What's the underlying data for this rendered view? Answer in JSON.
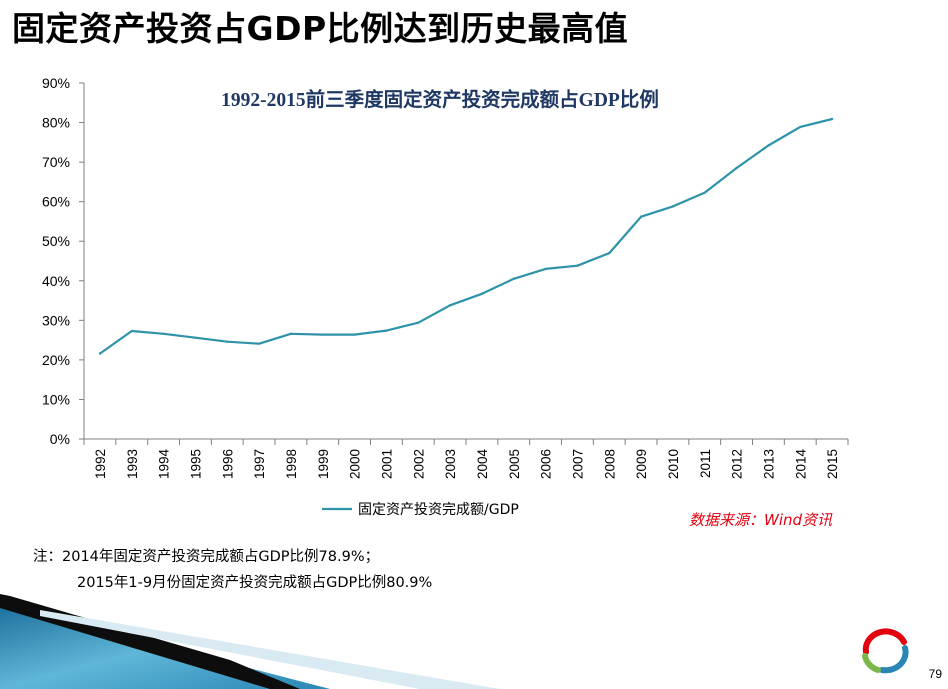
{
  "slide": {
    "title": "固定资产投资占GDP比例达到历史最高值",
    "source": "数据来源：Wind资讯",
    "notes": [
      "注：2014年固定资产投资完成额占GDP比例78.9%；",
      "2015年1-9月份固定资产投资完成额占GDP比例80.9%"
    ],
    "page_number": "79"
  },
  "colors": {
    "series_line": "#2e93a8",
    "axis": "#7f7f7f",
    "chart_title": "#1f3864",
    "source_text": "#e3000f"
  },
  "chart_data": {
    "type": "line",
    "title": "1992-2015前三季度固定资产投资完成额占GDP比例",
    "xlabel": "",
    "ylabel": "",
    "x": [
      "1992",
      "1993",
      "1994",
      "1995",
      "1996",
      "1997",
      "1998",
      "1999",
      "2000",
      "2001",
      "2002",
      "2003",
      "2004",
      "2005",
      "2006",
      "2007",
      "2008",
      "2009",
      "2010",
      "2011",
      "2012",
      "2013",
      "2014",
      "2015"
    ],
    "series": [
      {
        "name": "固定资产投资完成额/GDP",
        "values": [
          21.6,
          27.3,
          26.6,
          25.6,
          24.6,
          24.1,
          26.6,
          26.4,
          26.4,
          27.4,
          29.4,
          33.8,
          36.7,
          40.5,
          43.0,
          43.8,
          47.0,
          56.2,
          58.8,
          62.3,
          68.5,
          74.2,
          78.9,
          80.9
        ]
      }
    ],
    "ylim": [
      0,
      90
    ],
    "yticks": [
      0,
      10,
      20,
      30,
      40,
      50,
      60,
      70,
      80,
      90
    ],
    "ytick_labels": [
      "0%",
      "10%",
      "20%",
      "30%",
      "40%",
      "50%",
      "60%",
      "70%",
      "80%",
      "90%"
    ],
    "grid": false,
    "legend_position": "bottom"
  }
}
